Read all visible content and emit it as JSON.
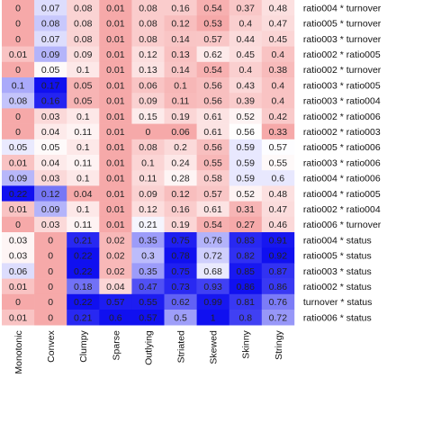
{
  "chart_data": {
    "type": "heatmap",
    "columns": [
      "Monotonic",
      "Convex",
      "Clumpy",
      "Sparse",
      "Outlying",
      "Striated",
      "Skewed",
      "Skinny",
      "Stringy"
    ],
    "rows": [
      {
        "label": "ratio004 * turnover",
        "values": [
          0,
          0.07,
          0.08,
          0.01,
          0.08,
          0.16,
          0.54,
          0.37,
          0.48
        ]
      },
      {
        "label": "ratio005 * turnover",
        "values": [
          0,
          0.08,
          0.08,
          0.01,
          0.08,
          0.12,
          0.53,
          0.4,
          0.47
        ]
      },
      {
        "label": "ratio003 * turnover",
        "values": [
          0,
          0.07,
          0.08,
          0.01,
          0.08,
          0.14,
          0.57,
          0.44,
          0.45
        ]
      },
      {
        "label": "ratio002 * ratio005",
        "values": [
          0.01,
          0.09,
          0.09,
          0.01,
          0.12,
          0.13,
          0.62,
          0.45,
          0.4
        ]
      },
      {
        "label": "ratio002 * turnover",
        "values": [
          0,
          0.05,
          0.1,
          0.01,
          0.13,
          0.14,
          0.54,
          0.4,
          0.38
        ]
      },
      {
        "label": "ratio003 * ratio005",
        "values": [
          0.1,
          0.17,
          0.05,
          0.01,
          0.06,
          0.1,
          0.56,
          0.43,
          0.4
        ]
      },
      {
        "label": "ratio003 * ratio004",
        "values": [
          0.08,
          0.16,
          0.05,
          0.01,
          0.09,
          0.11,
          0.56,
          0.39,
          0.4
        ]
      },
      {
        "label": "ratio002 * ratio006",
        "values": [
          0,
          0.03,
          0.1,
          0.01,
          0.15,
          0.19,
          0.61,
          0.52,
          0.42
        ]
      },
      {
        "label": "ratio002 * ratio003",
        "values": [
          0,
          0.04,
          0.11,
          0.01,
          0,
          0.06,
          0.61,
          0.56,
          0.33
        ]
      },
      {
        "label": "ratio005 * ratio006",
        "values": [
          0.05,
          0.05,
          0.1,
          0.01,
          0.08,
          0.2,
          0.56,
          0.59,
          0.57
        ]
      },
      {
        "label": "ratio003 * ratio006",
        "values": [
          0.01,
          0.04,
          0.11,
          0.01,
          0.1,
          0.24,
          0.55,
          0.59,
          0.55
        ]
      },
      {
        "label": "ratio004 * ratio006",
        "values": [
          0.09,
          0.03,
          0.1,
          0.01,
          0.11,
          0.28,
          0.58,
          0.59,
          0.6
        ]
      },
      {
        "label": "ratio004 * ratio005",
        "values": [
          0.22,
          0.12,
          0.04,
          0.01,
          0.09,
          0.12,
          0.57,
          0.52,
          0.48
        ]
      },
      {
        "label": "ratio002 * ratio004",
        "values": [
          0.01,
          0.09,
          0.1,
          0.01,
          0.12,
          0.16,
          0.61,
          0.31,
          0.47
        ]
      },
      {
        "label": "ratio006 * turnover",
        "values": [
          0,
          0.03,
          0.11,
          0.01,
          0.21,
          0.19,
          0.54,
          0.27,
          0.46
        ]
      },
      {
        "label": "ratio004 * status",
        "values": [
          0.03,
          0,
          0.21,
          0.02,
          0.35,
          0.75,
          0.76,
          0.83,
          0.91
        ]
      },
      {
        "label": "ratio005 * status",
        "values": [
          0.03,
          0,
          0.22,
          0.02,
          0.3,
          0.78,
          0.72,
          0.82,
          0.92
        ]
      },
      {
        "label": "ratio003 * status",
        "values": [
          0.06,
          0,
          0.22,
          0.02,
          0.35,
          0.75,
          0.68,
          0.85,
          0.87
        ]
      },
      {
        "label": "ratio002 * status",
        "values": [
          0.01,
          0,
          0.18,
          0.04,
          0.47,
          0.73,
          0.93,
          0.86,
          0.86
        ]
      },
      {
        "label": "turnover * status",
        "values": [
          0,
          0,
          0.22,
          0.57,
          0.55,
          0.62,
          0.99,
          0.81,
          0.76
        ]
      },
      {
        "label": "ratio006 * status",
        "values": [
          0.01,
          0,
          0.21,
          0.6,
          0.57,
          0.5,
          1,
          0.8,
          0.72
        ]
      }
    ],
    "color_scale": "per-column diverging: red for values below the column mean, white near the mean, blue above",
    "colors": {
      "low": "#f07070",
      "mid": "#ffffff",
      "high": "#1010f0"
    },
    "legend": "none",
    "grid": false
  }
}
